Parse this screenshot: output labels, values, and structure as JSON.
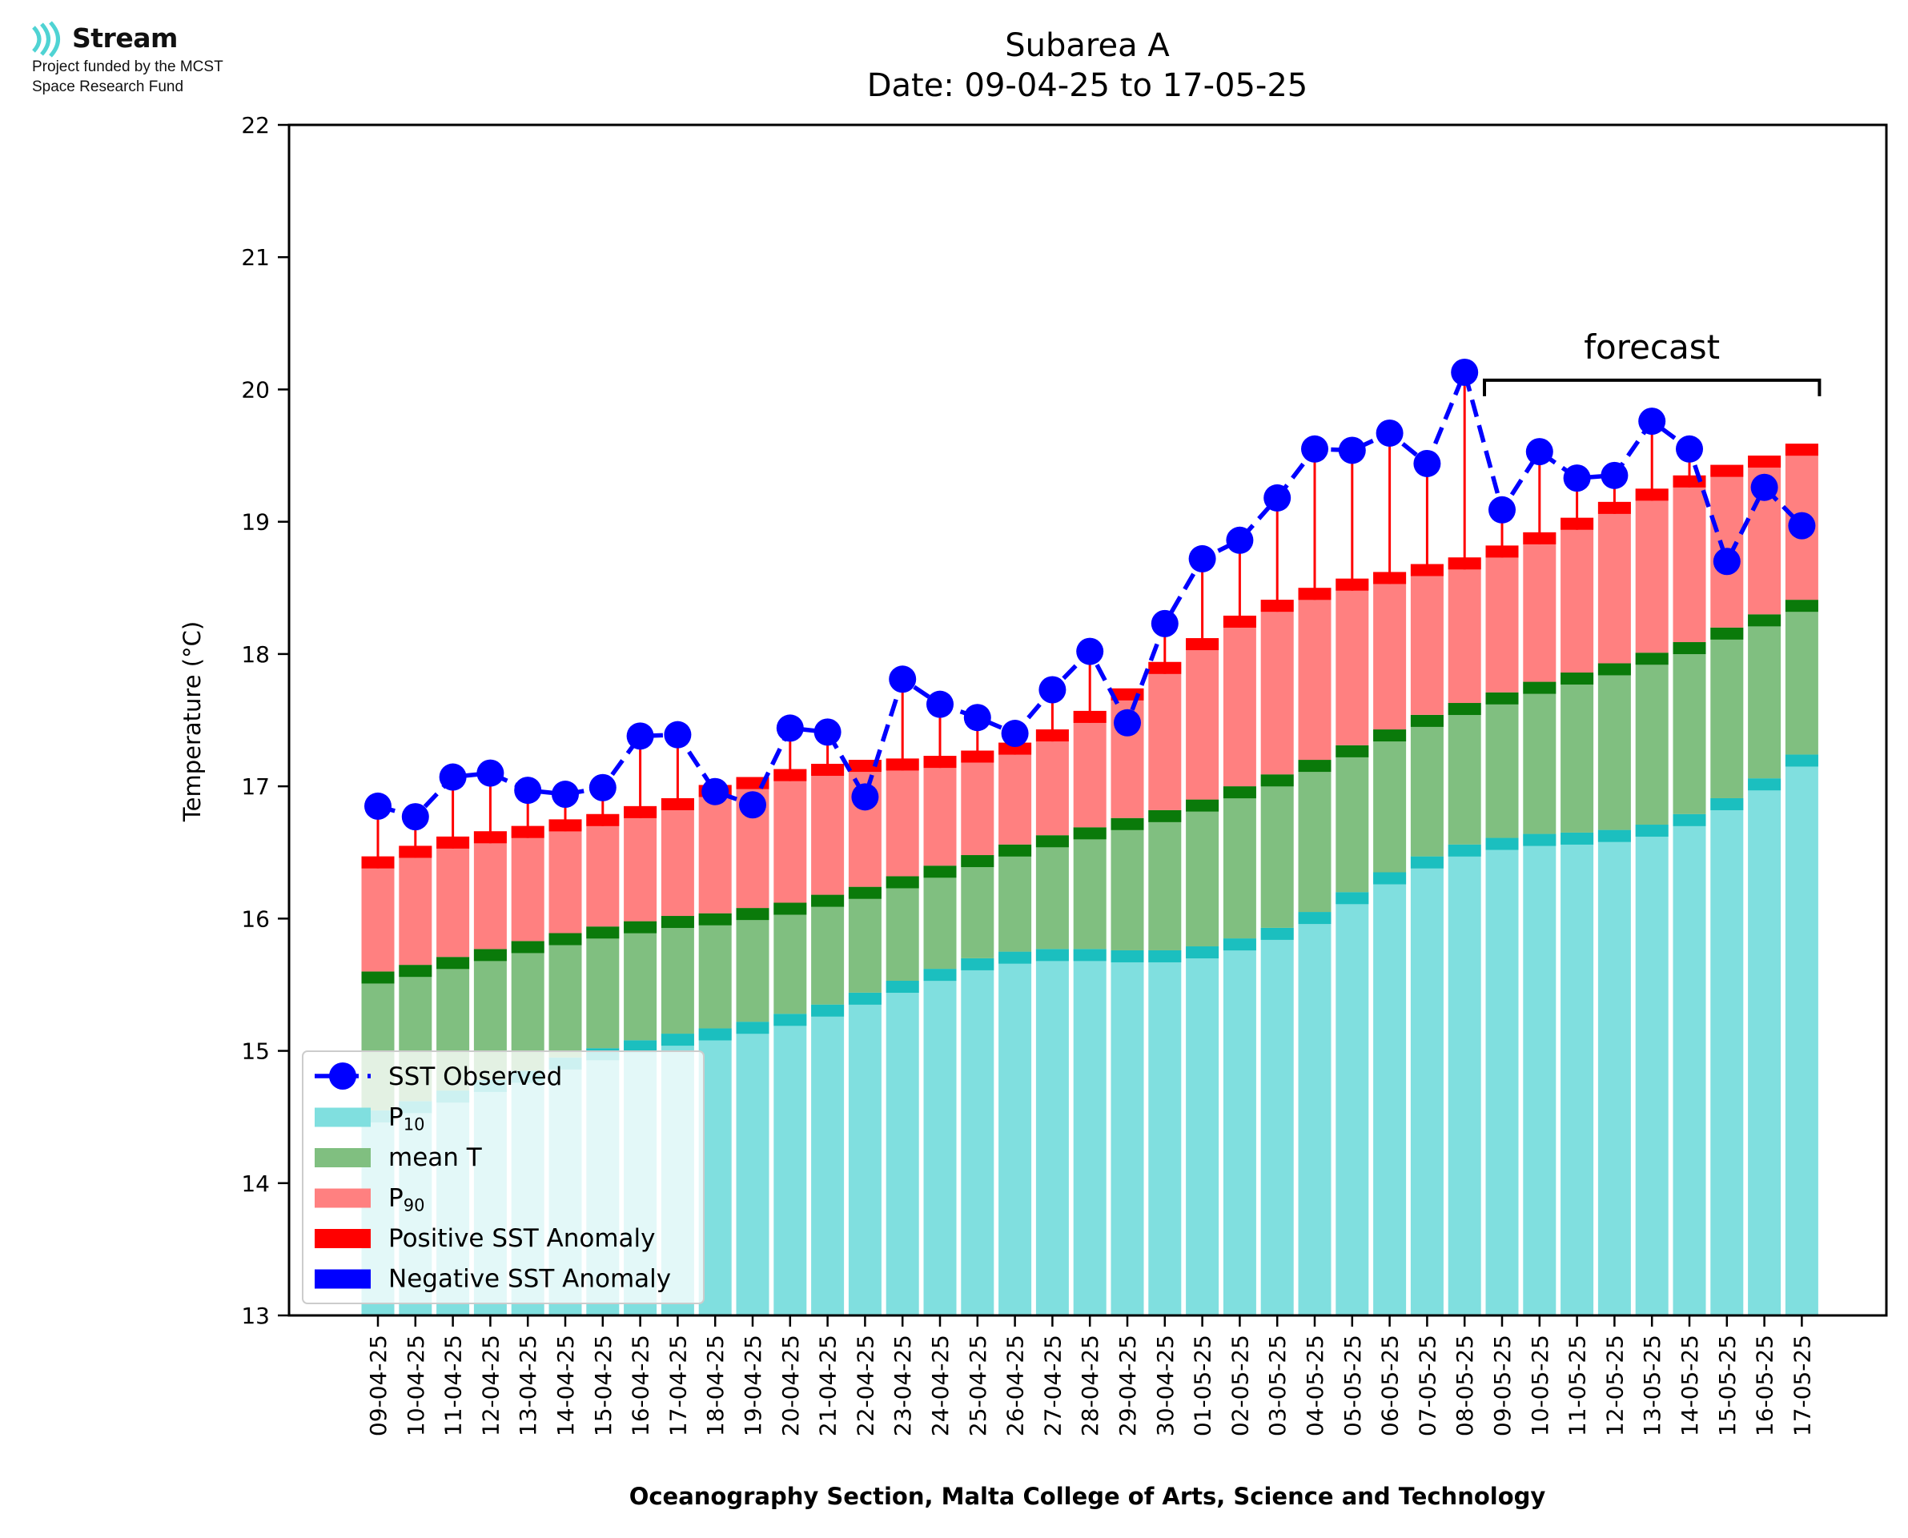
{
  "logo": {
    "name": "Stream",
    "line1": "Project funded by the MCST",
    "line2": "Space Research Fund",
    "color": "#4fd3d3"
  },
  "chart_data": {
    "type": "bar",
    "title": "Subarea A",
    "subtitle": "Date: 09-04-25 to 17-05-25",
    "xlabel": "Oceanography Section, Malta College of Arts, Science and Technology",
    "ylabel": "Temperature (°C)",
    "ylim": [
      13,
      22
    ],
    "yticks": [
      13,
      14,
      15,
      16,
      17,
      18,
      19,
      20,
      21,
      22
    ],
    "categories": [
      "09-04-25",
      "10-04-25",
      "11-04-25",
      "12-04-25",
      "13-04-25",
      "14-04-25",
      "15-04-25",
      "16-04-25",
      "17-04-25",
      "18-04-25",
      "19-04-25",
      "20-04-25",
      "21-04-25",
      "22-04-25",
      "23-04-25",
      "24-04-25",
      "25-04-25",
      "26-04-25",
      "27-04-25",
      "28-04-25",
      "29-04-25",
      "30-04-25",
      "01-05-25",
      "02-05-25",
      "03-05-25",
      "04-05-25",
      "05-05-25",
      "06-05-25",
      "07-05-25",
      "08-05-25",
      "09-05-25",
      "10-05-25",
      "11-05-25",
      "12-05-25",
      "13-05-25",
      "14-05-25",
      "15-05-25",
      "16-05-25",
      "17-05-25"
    ],
    "series": [
      {
        "name": "P10",
        "color": "#80dfdf",
        "cap_color": "#1bbfbf",
        "values": [
          14.55,
          14.62,
          14.7,
          14.78,
          14.85,
          14.95,
          15.02,
          15.08,
          15.13,
          15.17,
          15.22,
          15.28,
          15.35,
          15.44,
          15.53,
          15.62,
          15.7,
          15.75,
          15.77,
          15.77,
          15.76,
          15.76,
          15.79,
          15.85,
          15.93,
          16.05,
          16.2,
          16.35,
          16.47,
          16.56,
          16.61,
          16.64,
          16.65,
          16.67,
          16.71,
          16.79,
          16.91,
          17.06,
          17.24
        ]
      },
      {
        "name": "mean T",
        "color": "#80bf80",
        "cap_color": "#0a7a0a",
        "values": [
          15.6,
          15.65,
          15.71,
          15.77,
          15.83,
          15.89,
          15.94,
          15.98,
          16.02,
          16.04,
          16.08,
          16.12,
          16.18,
          16.24,
          16.32,
          16.4,
          16.48,
          16.56,
          16.63,
          16.69,
          16.76,
          16.82,
          16.9,
          17.0,
          17.09,
          17.2,
          17.31,
          17.43,
          17.54,
          17.63,
          17.71,
          17.79,
          17.86,
          17.93,
          18.01,
          18.09,
          18.2,
          18.3,
          18.41
        ]
      },
      {
        "name": "P90",
        "color": "#ff8080",
        "cap_color": "#ff0000",
        "values": [
          16.47,
          16.55,
          16.62,
          16.66,
          16.7,
          16.75,
          16.79,
          16.85,
          16.91,
          17.01,
          17.07,
          17.13,
          17.17,
          17.2,
          17.21,
          17.23,
          17.27,
          17.33,
          17.43,
          17.57,
          17.74,
          17.94,
          18.12,
          18.29,
          18.41,
          18.5,
          18.57,
          18.62,
          18.68,
          18.73,
          18.82,
          18.92,
          19.03,
          19.15,
          19.25,
          19.35,
          19.43,
          19.5,
          19.59
        ]
      }
    ],
    "observed": {
      "name": "SST Observed",
      "color": "#0000ff",
      "values": [
        16.85,
        16.77,
        17.07,
        17.1,
        16.97,
        16.94,
        16.99,
        17.38,
        17.39,
        16.96,
        16.86,
        17.44,
        17.41,
        16.92,
        17.81,
        17.62,
        17.52,
        17.4,
        17.73,
        18.02,
        17.48,
        18.23,
        18.72,
        18.86,
        19.18,
        19.55,
        19.54,
        19.67,
        19.44,
        20.13,
        19.09,
        19.53,
        19.33,
        19.35,
        19.76,
        19.55,
        18.7,
        19.26,
        18.97
      ]
    },
    "legend": {
      "position": "lower-left",
      "items": [
        {
          "label": "SST Observed",
          "kind": "line-marker",
          "color": "#0000ff"
        },
        {
          "label": "P",
          "sub": "10",
          "kind": "patch",
          "color": "#80dfdf"
        },
        {
          "label": "mean T",
          "kind": "patch",
          "color": "#80bf80"
        },
        {
          "label": "P",
          "sub": "90",
          "kind": "patch",
          "color": "#ff8080"
        },
        {
          "label": "Positive SST Anomaly",
          "kind": "patch",
          "color": "#ff0000"
        },
        {
          "label": "Negative SST Anomaly",
          "kind": "patch",
          "color": "#0000ff"
        }
      ]
    },
    "annotation": {
      "text": "forecast",
      "from": "09-05-25",
      "to": "17-05-25"
    },
    "grid": false
  }
}
